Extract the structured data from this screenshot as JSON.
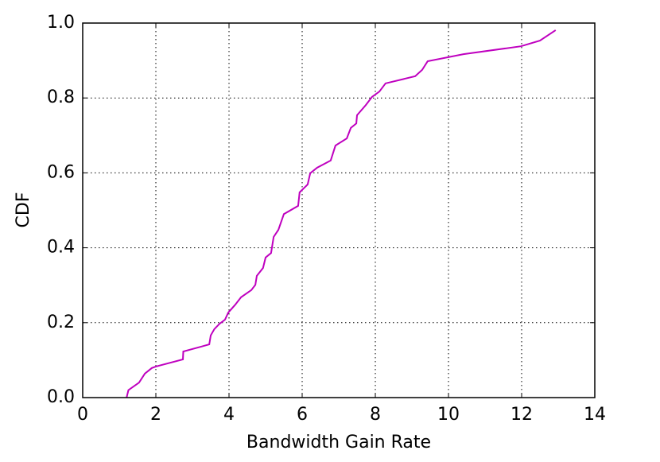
{
  "chart_data": {
    "type": "line",
    "x_label": "Bandwidth Gain Rate",
    "y_label": "CDF",
    "x": [
      1.2,
      1.25,
      1.54,
      1.7,
      1.89,
      2.0,
      2.74,
      2.75,
      3.46,
      3.5,
      3.6,
      3.74,
      3.89,
      3.98,
      4.17,
      4.33,
      4.61,
      4.72,
      4.76,
      4.93,
      5.0,
      5.15,
      5.22,
      5.35,
      5.5,
      5.89,
      5.93,
      6.15,
      6.22,
      6.41,
      6.78,
      6.91,
      7.22,
      7.33,
      7.48,
      7.5,
      7.74,
      7.91,
      8.11,
      8.28,
      9.09,
      9.28,
      9.43,
      10.41,
      11.98,
      12.5,
      12.93
    ],
    "series": [
      {
        "name": "CDF",
        "color": "#bf00bf",
        "values": [
          0.0,
          0.02,
          0.04,
          0.064,
          0.079,
          0.083,
          0.102,
          0.123,
          0.142,
          0.166,
          0.183,
          0.197,
          0.208,
          0.227,
          0.248,
          0.268,
          0.287,
          0.301,
          0.325,
          0.346,
          0.374,
          0.386,
          0.429,
          0.448,
          0.49,
          0.512,
          0.548,
          0.569,
          0.599,
          0.614,
          0.633,
          0.673,
          0.692,
          0.72,
          0.732,
          0.754,
          0.781,
          0.803,
          0.817,
          0.839,
          0.858,
          0.875,
          0.898,
          0.917,
          0.938,
          0.953,
          0.981
        ]
      }
    ],
    "xlim": [
      0,
      14
    ],
    "xticks": [
      0,
      2,
      4,
      6,
      8,
      10,
      12,
      14
    ],
    "ylim": [
      0,
      1
    ],
    "yticks": [
      {
        "value": 0,
        "label": "0.0"
      },
      0.2,
      0.4,
      0.6,
      0.8,
      {
        "value": 1,
        "label": "1.0"
      }
    ],
    "grid": true
  }
}
